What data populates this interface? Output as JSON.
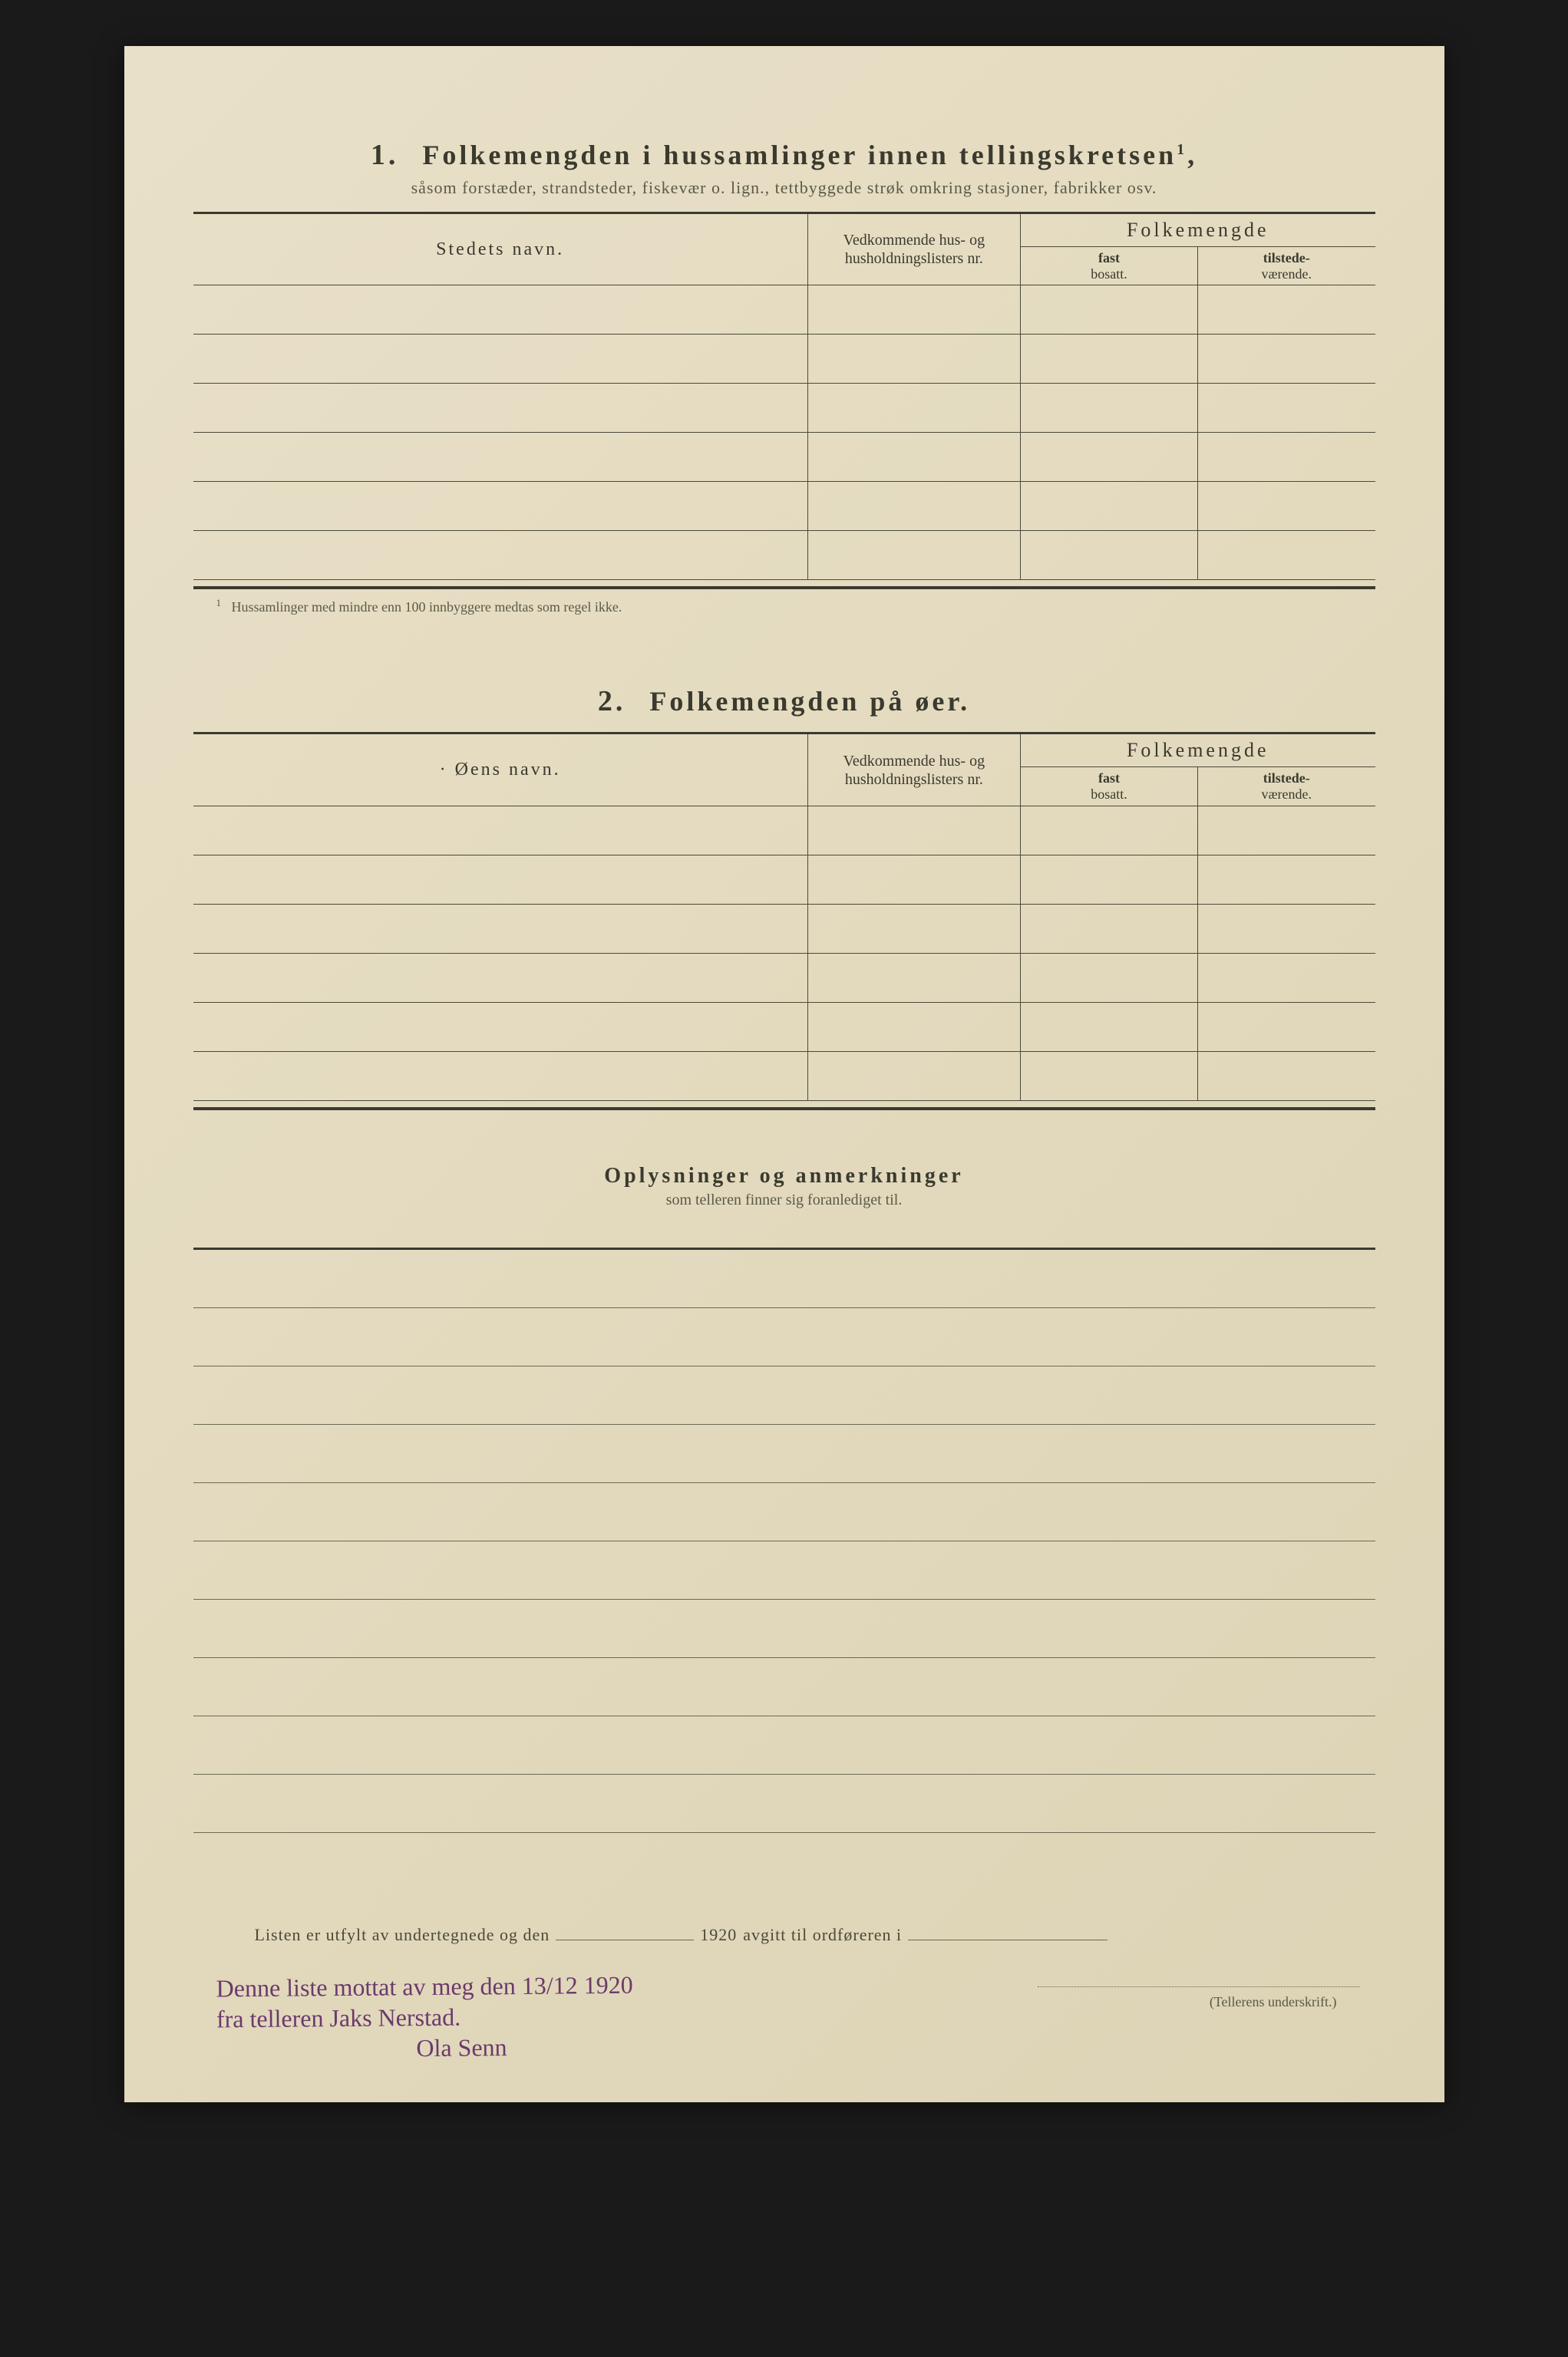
{
  "colors": {
    "page_bg_start": "#e8e0c8",
    "page_bg_end": "#ddd3b5",
    "outer_bg": "#1a1a1a",
    "text": "#3a3a2e",
    "rule": "#4a4a38",
    "hand_ink": "#6b3a6b"
  },
  "section1": {
    "number": "1.",
    "title": "Folkemengden i hussamlinger innen tellingskretsen",
    "title_sup": "1",
    "subtitle": "såsom forstæder, strandsteder, fiskevær o. lign., tettbyggede strøk omkring stasjoner, fabrikker osv.",
    "columns": {
      "name": "Stedets navn.",
      "nr": "Vedkommende hus- og husholdningslisters nr.",
      "group": "Folkemengde",
      "fast_top": "fast",
      "fast_bottom": "bosatt.",
      "til_top": "tilstede-",
      "til_bottom": "værende."
    },
    "row_count": 6,
    "footnote_sup": "1",
    "footnote": "Hussamlinger med mindre enn 100 innbyggere medtas som regel ikke."
  },
  "section2": {
    "number": "2.",
    "title": "Folkemengden på øer.",
    "columns": {
      "name": "Øens navn.",
      "nr": "Vedkommende hus- og husholdningslisters nr.",
      "group": "Folkemengde",
      "fast_top": "fast",
      "fast_bottom": "bosatt.",
      "til_top": "tilstede-",
      "til_bottom": "værende."
    },
    "row_count": 6
  },
  "section3": {
    "title": "Oplysninger og anmerkninger",
    "subtitle": "som telleren finner sig foranlediget til.",
    "blank_lines": 10
  },
  "bottom": {
    "prefix": "Listen er utfylt av undertegnede og den",
    "year": "1920",
    "suffix": "avgitt til ordføreren i"
  },
  "signature_label": "(Tellerens underskrift.)",
  "handwriting": {
    "line1": "Denne liste mottat av meg den 13/12 1920",
    "line2": "fra telleren Jaks Nerstad.",
    "line3": "Ola Senn"
  }
}
